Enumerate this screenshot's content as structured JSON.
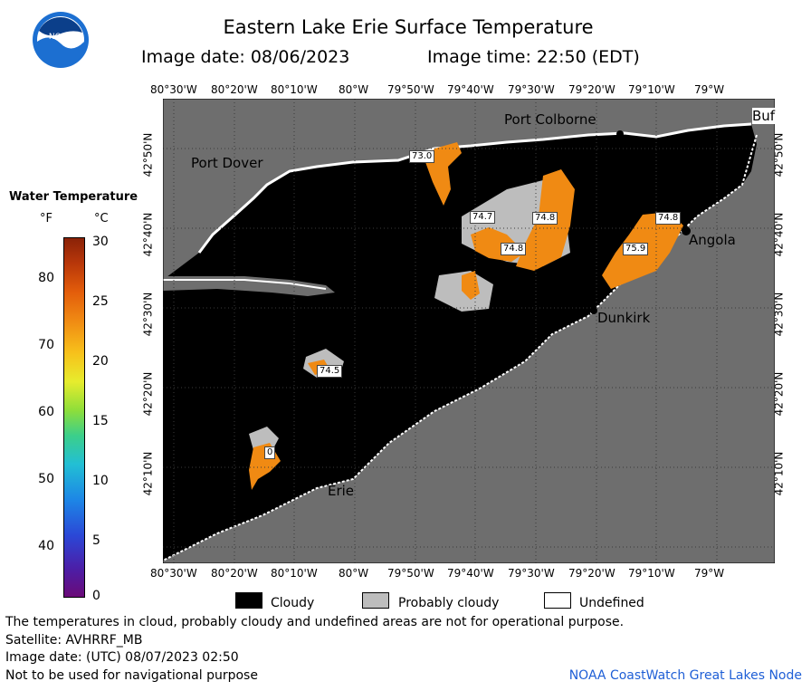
{
  "header": {
    "title": "Eastern Lake Erie Surface Temperature",
    "image_date": "Image date: 08/06/2023",
    "image_time": "Image time: 22:50 (EDT)"
  },
  "logo": {
    "text": "NOAA",
    "icon": "noaa-logo"
  },
  "legend": {
    "title": "Water Temperature",
    "unit_f": "°F",
    "unit_c": "°C",
    "fahrenheit_ticks": [
      "80",
      "70",
      "60",
      "50",
      "40"
    ],
    "celsius_ticks": [
      "30",
      "25",
      "20",
      "15",
      "10",
      "5",
      "0"
    ]
  },
  "map": {
    "top_axis": [
      "80°30'W",
      "80°20'W",
      "80°10'W",
      "80°W",
      "79°50'W",
      "79°40'W",
      "79°30'W",
      "79°20'W",
      "79°10'W",
      "79°W"
    ],
    "bottom_axis": [
      "80°30'W",
      "80°20'W",
      "80°10'W",
      "80°W",
      "79°50'W",
      "79°40'W",
      "79°30'W",
      "79°20'W",
      "79°10'W",
      "79°W"
    ],
    "left_axis": [
      "42°50'N",
      "42°40'N",
      "42°30'N",
      "42°20'N",
      "42°10'N"
    ],
    "right_axis": [
      "42°50'N",
      "42°40'N",
      "42°30'N",
      "42°20'N",
      "42°10'N"
    ],
    "places": {
      "port_colborne": "Port Colborne",
      "port_dover": "Port Dover",
      "angola": "Angola",
      "dunkirk": "Dunkirk",
      "erie": "Erie",
      "buffalo": "Buf"
    },
    "temperature_labels": [
      "73.0",
      "74.7",
      "74.8",
      "74.8",
      "74.8",
      "75.9",
      "74.5",
      "0"
    ],
    "colors": {
      "cloud": "#000000",
      "land": "#6e6e6e",
      "probably_cloudy": "#bdbdbd",
      "undefined": "#ffffff",
      "water_warm": "#f08a13"
    }
  },
  "key": {
    "cloudy": "Cloudy",
    "probably_cloudy": "Probably cloudy",
    "undefined": "Undefined"
  },
  "footer": {
    "disclaimer": "The temperatures in cloud, probably cloudy and undefined areas are not for operational purpose.",
    "satellite": "Satellite: AVHRRF_MB",
    "utc_date": "Image date: (UTC) 08/07/2023  02:50",
    "navigation": "Not to be used for navigational purpose",
    "credit": "NOAA CoastWatch Great Lakes Node"
  }
}
